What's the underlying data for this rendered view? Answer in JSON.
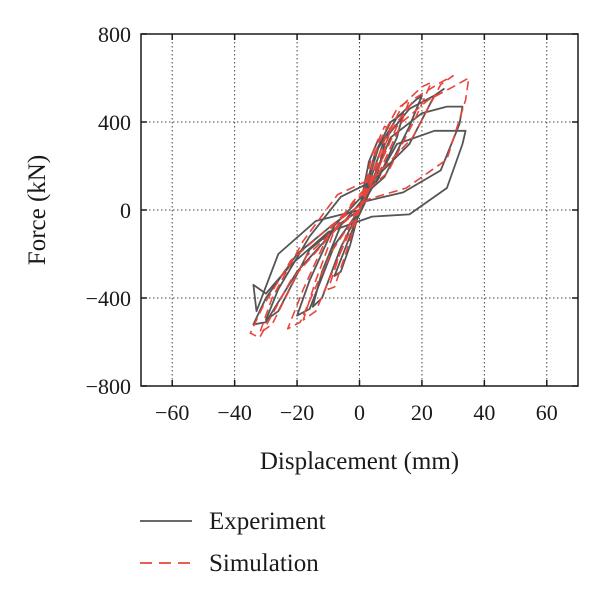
{
  "chart_data": {
    "type": "line",
    "xlabel": "Displacement (mm)",
    "ylabel": "Force (kN)",
    "xlim": [
      -70,
      70
    ],
    "ylim": [
      -800,
      800
    ],
    "x_ticks": [
      -60,
      -40,
      -20,
      0,
      20,
      40,
      60
    ],
    "y_ticks": [
      -800,
      -400,
      0,
      400,
      800
    ],
    "x_tick_labels": [
      "−60",
      "−40",
      "−20",
      "0",
      "20",
      "40",
      "60"
    ],
    "y_tick_labels": [
      "−800",
      "−400",
      "0",
      "400",
      "800"
    ],
    "grid": true,
    "legend_position": "bottom",
    "series": [
      {
        "name": "Experiment",
        "style": "solid",
        "color": "#555555",
        "loops": [
          {
            "x": [
              0,
              3,
              6,
              8,
              6,
              2,
              -2,
              -5,
              -8,
              -6,
              -3,
              0
            ],
            "y": [
              0,
              220,
              320,
              300,
              180,
              40,
              -80,
              -190,
              -300,
              -280,
              -160,
              0
            ]
          },
          {
            "x": [
              0,
              5,
              10,
              14,
              12,
              6,
              0,
              -6,
              -12,
              -15,
              -12,
              -6,
              0
            ],
            "y": [
              0,
              260,
              400,
              440,
              330,
              140,
              30,
              -70,
              -280,
              -440,
              -400,
              -170,
              0
            ]
          },
          {
            "x": [
              0,
              6,
              12,
              18,
              20,
              16,
              8,
              0,
              -8,
              -16,
              -20,
              -16,
              -8,
              0
            ],
            "y": [
              0,
              280,
              420,
              500,
              520,
              380,
              150,
              50,
              -70,
              -320,
              -480,
              -450,
              -160,
              0
            ]
          },
          {
            "x": [
              0,
              8,
              16,
              24,
              27,
              24,
              16,
              4,
              -6,
              -16,
              -26,
              -30,
              -26,
              -16,
              -4,
              0
            ],
            "y": [
              0,
              320,
              460,
              520,
              550,
              520,
              300,
              130,
              60,
              -120,
              -360,
              -500,
              -460,
              -180,
              -40,
              0
            ]
          },
          {
            "x": [
              0,
              10,
              20,
              28,
              33,
              32,
              26,
              14,
              2,
              -8,
              -20,
              -30,
              -34,
              -30,
              -20,
              -6,
              0
            ],
            "y": [
              0,
              330,
              440,
              470,
              470,
              390,
              180,
              80,
              40,
              -60,
              -200,
              -400,
              -520,
              -510,
              -280,
              -60,
              0
            ]
          },
          {
            "x": [
              0,
              12,
              24,
              30,
              34,
              33,
              28,
              16,
              4,
              -10,
              -22,
              -30,
              -34,
              -33,
              -26,
              -14,
              0
            ],
            "y": [
              0,
              300,
              360,
              360,
              360,
              300,
              100,
              -20,
              -30,
              -100,
              -250,
              -380,
              -340,
              -460,
              -200,
              -50,
              0
            ]
          }
        ]
      },
      {
        "name": "Simulation",
        "style": "dashed",
        "color": "#e8453c",
        "loops": [
          {
            "x": [
              0,
              4,
              8,
              10,
              7,
              2,
              -3,
              -7,
              -10,
              -8,
              -4,
              0
            ],
            "y": [
              0,
              250,
              380,
              370,
              220,
              60,
              -60,
              -230,
              -360,
              -350,
              -180,
              0
            ]
          },
          {
            "x": [
              0,
              6,
              12,
              16,
              13,
              6,
              -2,
              -8,
              -14,
              -18,
              -14,
              -6,
              0
            ],
            "y": [
              0,
              300,
              460,
              500,
              380,
              160,
              40,
              -90,
              -320,
              -500,
              -460,
              -190,
              0
            ]
          },
          {
            "x": [
              0,
              8,
              14,
              20,
              23,
              18,
              9,
              0,
              -9,
              -18,
              -23,
              -19,
              -9,
              0
            ],
            "y": [
              0,
              320,
              480,
              560,
              580,
              420,
              170,
              60,
              -80,
              -360,
              -540,
              -510,
              -190,
              0
            ]
          },
          {
            "x": [
              0,
              10,
              18,
              26,
              30,
              26,
              17,
              5,
              -7,
              -18,
              -28,
              -32,
              -28,
              -17,
              -5,
              0
            ],
            "y": [
              0,
              360,
              510,
              580,
              610,
              570,
              330,
              150,
              70,
              -140,
              -400,
              -560,
              -520,
              -210,
              -50,
              0
            ]
          },
          {
            "x": [
              0,
              12,
              22,
              30,
              35,
              34,
              28,
              15,
              3,
              -9,
              -22,
              -31,
              -35,
              -32,
              -22,
              -7,
              0
            ],
            "y": [
              0,
              380,
              500,
              560,
              600,
              500,
              230,
              100,
              50,
              -70,
              -230,
              -440,
              -560,
              -580,
              -320,
              -80,
              0
            ]
          }
        ]
      }
    ]
  }
}
